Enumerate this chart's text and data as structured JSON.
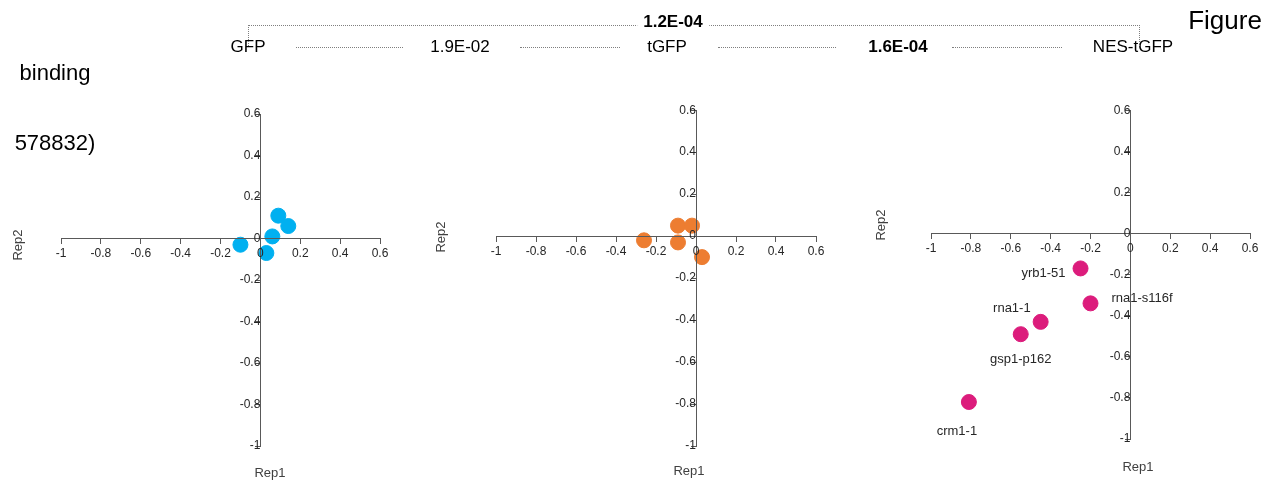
{
  "chart_data": [
    {
      "type": "scatter",
      "title": "GFP",
      "xlabel": "Rep1",
      "ylabel": "Rep2",
      "xlim": [
        -1,
        0.6
      ],
      "ylim": [
        -1,
        0.6
      ],
      "xticks": [
        -1,
        -0.8,
        -0.6,
        -0.4,
        -0.2,
        0,
        0.2,
        0.4,
        0.6
      ],
      "yticks": [
        -1,
        -0.8,
        -0.6,
        -0.4,
        -0.2,
        0,
        0.2,
        0.4,
        0.6
      ],
      "marker": "circle",
      "legend": false,
      "series": [
        {
          "color": "#00b0f0",
          "x": [
            -0.1,
            0.09,
            0.14,
            0.06,
            0.03
          ],
          "values": [
            -0.03,
            0.11,
            0.06,
            0.01,
            -0.07
          ]
        }
      ],
      "annotations": [
        "1.2E-04",
        "1.9E-02",
        "binding",
        "578832)"
      ]
    },
    {
      "type": "scatter",
      "title": "tGFP",
      "xlabel": "Rep1",
      "ylabel": "Rep2",
      "xlim": [
        -1,
        0.6
      ],
      "ylim": [
        -1,
        0.6
      ],
      "xticks": [
        -1,
        -0.8,
        -0.6,
        -0.4,
        -0.2,
        0,
        0.2,
        0.4,
        0.6
      ],
      "yticks": [
        -1,
        -0.8,
        -0.6,
        -0.4,
        -0.2,
        0,
        0.2,
        0.4,
        0.6
      ],
      "marker": "circle",
      "legend": false,
      "series": [
        {
          "color": "#ed7d31",
          "x": [
            -0.26,
            -0.09,
            -0.02,
            -0.09,
            0.03
          ],
          "values": [
            -0.02,
            0.05,
            0.05,
            -0.03,
            -0.1
          ]
        }
      ],
      "annotations": [
        "1.6E-04"
      ]
    },
    {
      "type": "scatter",
      "title": "NES-tGFP",
      "xlabel": "Rep1",
      "ylabel": "Rep2",
      "xlim": [
        -1,
        0.6
      ],
      "ylim": [
        -1,
        0.6
      ],
      "xticks": [
        -1,
        -0.8,
        -0.6,
        -0.4,
        -0.2,
        0,
        0.2,
        0.4,
        0.6
      ],
      "yticks": [
        -1,
        -0.8,
        -0.6,
        -0.4,
        -0.2,
        0,
        0.2,
        0.4,
        0.6
      ],
      "marker": "circle",
      "legend": false,
      "series": [
        {
          "color": "#dc1c7c",
          "x": [
            -0.25,
            -0.2,
            -0.45,
            -0.55,
            -0.81
          ],
          "values": [
            -0.17,
            -0.34,
            -0.43,
            -0.49,
            -0.82
          ]
        }
      ],
      "annotations": [
        {
          "text": "yrb1-51",
          "x": -0.25,
          "y": -0.17
        },
        {
          "text": "rna1-s116f",
          "x": -0.2,
          "y": -0.34
        },
        {
          "text": "rna1-1",
          "x": -0.45,
          "y": -0.43
        },
        {
          "text": "gsp1-p162",
          "x": -0.55,
          "y": -0.49
        },
        {
          "text": "crm1-1",
          "x": -0.81,
          "y": -0.82
        },
        "Figure"
      ]
    }
  ]
}
